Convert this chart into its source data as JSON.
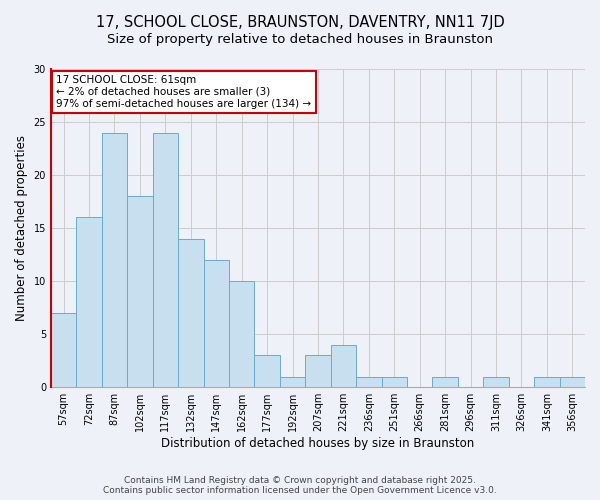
{
  "title": "17, SCHOOL CLOSE, BRAUNSTON, DAVENTRY, NN11 7JD",
  "subtitle": "Size of property relative to detached houses in Braunston",
  "xlabel": "Distribution of detached houses by size in Braunston",
  "ylabel": "Number of detached properties",
  "categories": [
    "57sqm",
    "72sqm",
    "87sqm",
    "102sqm",
    "117sqm",
    "132sqm",
    "147sqm",
    "162sqm",
    "177sqm",
    "192sqm",
    "207sqm",
    "221sqm",
    "236sqm",
    "251sqm",
    "266sqm",
    "281sqm",
    "296sqm",
    "311sqm",
    "326sqm",
    "341sqm",
    "356sqm"
  ],
  "values": [
    7,
    16,
    24,
    18,
    24,
    14,
    12,
    10,
    3,
    1,
    3,
    4,
    1,
    1,
    0,
    1,
    0,
    1,
    0,
    1,
    1
  ],
  "bar_color": "#c8dff0",
  "bar_edge_color": "#6aabcf",
  "annotation_title": "17 SCHOOL CLOSE: 61sqm",
  "annotation_line1": "← 2% of detached houses are smaller (3)",
  "annotation_line2": "97% of semi-detached houses are larger (134) →",
  "annotation_box_color": "#ffffff",
  "annotation_box_edge_color": "#cc0000",
  "ylim": [
    0,
    30
  ],
  "yticks": [
    0,
    5,
    10,
    15,
    20,
    25,
    30
  ],
  "grid_color": "#cccccc",
  "bg_color": "#eef2f8",
  "footer_line1": "Contains HM Land Registry data © Crown copyright and database right 2025.",
  "footer_line2": "Contains public sector information licensed under the Open Government Licence v3.0.",
  "title_fontsize": 10.5,
  "subtitle_fontsize": 9.5,
  "axis_label_fontsize": 8.5,
  "tick_fontsize": 7,
  "annotation_fontsize": 7.5,
  "footer_fontsize": 6.5
}
